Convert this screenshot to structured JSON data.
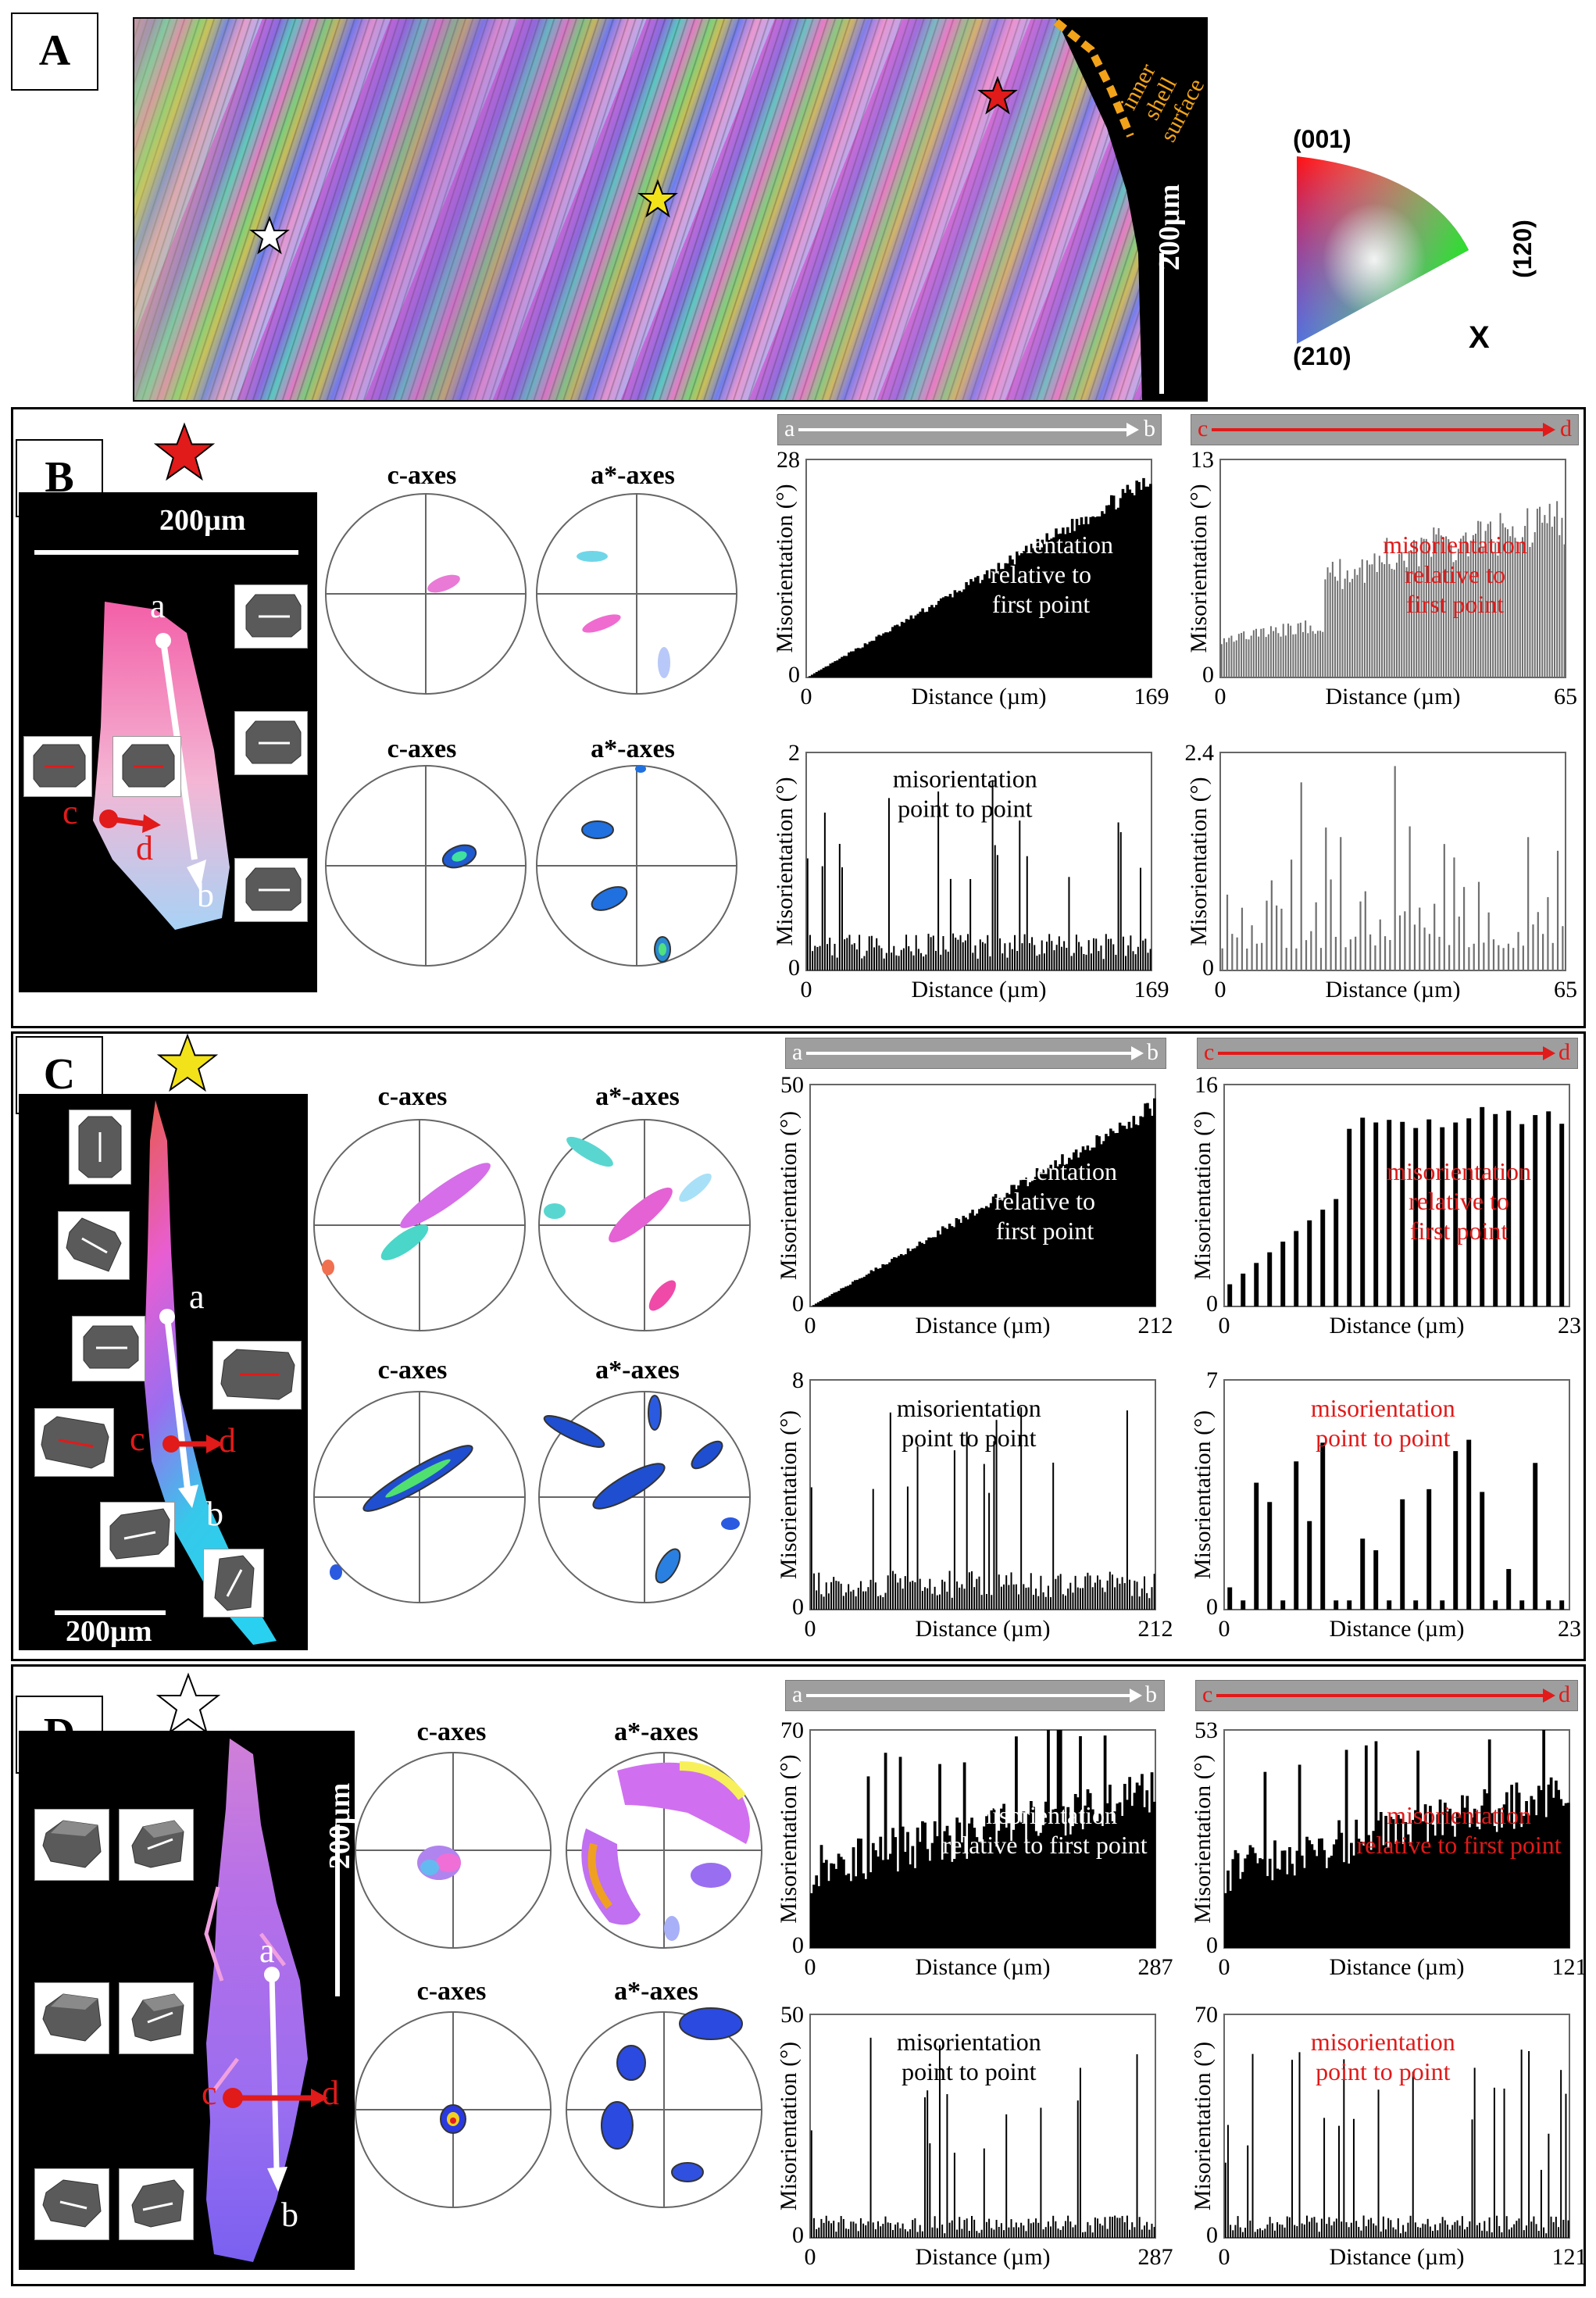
{
  "panels": {
    "A": {
      "letter": "A",
      "map_labels": {
        "inner_shell_surface": [
          "inner",
          "shell",
          "surface"
        ],
        "scale_bar": "200µm"
      },
      "ipf_key": {
        "top": "(001)",
        "right": "(120)",
        "bottom_left": "(210)",
        "axis": "X"
      }
    },
    "B": {
      "letter": "B",
      "star_color": "#e11a1a",
      "scale_bar": "200µm",
      "points": {
        "a": "a",
        "b": "b",
        "c": "c",
        "d": "d"
      },
      "pole_figures": {
        "c_axes": "c-axes",
        "a_axes": "a*-axes"
      },
      "header_ab": {
        "start": "a",
        "end": "b"
      },
      "header_cd": {
        "start": "c",
        "end": "d"
      }
    },
    "C": {
      "letter": "C",
      "star_color": "#f2e21a",
      "scale_bar": "200µm",
      "points": {
        "a": "a",
        "b": "b",
        "c": "c",
        "d": "d"
      },
      "pole_figures": {
        "c_axes": "c-axes",
        "a_axes": "a*-axes"
      },
      "header_ab": {
        "start": "a",
        "end": "b"
      },
      "header_cd": {
        "start": "c",
        "end": "d"
      }
    },
    "D": {
      "letter": "D",
      "star_color": "#ffffff",
      "scale_bar": "200µm",
      "points": {
        "a": "a",
        "b": "b",
        "c": "c",
        "d": "d"
      },
      "pole_figures": {
        "c_axes": "c-axes",
        "a_axes": "a*-axes"
      },
      "header_ab": {
        "start": "a",
        "end": "b"
      },
      "header_cd": {
        "start": "c",
        "end": "d"
      }
    }
  },
  "chart_data": [
    {
      "id": "B_ab_rel",
      "type": "bar",
      "profile": "cumulative",
      "ylabel": "Misorientation (°)",
      "xlabel": "Distance (µm)",
      "ylim": [
        0,
        28
      ],
      "xlim": [
        0,
        169
      ],
      "ytick_top": "28",
      "xtick_end": "169",
      "annotation": [
        "misorientation",
        "relative to",
        "first point"
      ],
      "annotation_color": "#000000",
      "bar_color": "#000000"
    },
    {
      "id": "B_cd_rel",
      "type": "bar",
      "profile": "cd_rel",
      "ylabel": "Misorientation (°)",
      "xlabel": "Distance (µm)",
      "ylim": [
        0,
        13
      ],
      "xlim": [
        0,
        65
      ],
      "ytick_top": "13",
      "xtick_end": "65",
      "annotation": [
        "misorientation",
        "relative to",
        "first point"
      ],
      "annotation_color": "#e11a1a",
      "bar_color": "#707070"
    },
    {
      "id": "B_ab_pt",
      "type": "bar",
      "profile": "spiky",
      "ylabel": "Misorientation (°)",
      "xlabel": "Distance (µm)",
      "ylim": [
        0,
        2
      ],
      "xlim": [
        0,
        169
      ],
      "ytick_top": "2",
      "xtick_end": "169",
      "annotation": [
        "misorientation",
        "point to point"
      ],
      "annotation_color": "#000000",
      "bar_color": "#000000"
    },
    {
      "id": "B_cd_pt",
      "type": "bar",
      "profile": "spiky_sparse",
      "ylabel": "Misorientation (°)",
      "xlabel": "Distance (µm)",
      "ylim": [
        0,
        2.4
      ],
      "xlim": [
        0,
        65
      ],
      "ytick_top": "2.4",
      "xtick_end": "65",
      "annotation": [],
      "annotation_color": "#e11a1a",
      "bar_color": "#707070"
    },
    {
      "id": "C_ab_rel",
      "type": "bar",
      "profile": "cumulative",
      "ylabel": "Misorientation (°)",
      "xlabel": "Distance (µm)",
      "ylim": [
        0,
        50
      ],
      "xlim": [
        0,
        212
      ],
      "ytick_top": "50",
      "xtick_end": "212",
      "annotation": [
        "misorientation",
        "relative to",
        "first point"
      ],
      "annotation_color": "#000000",
      "bar_color": "#000000"
    },
    {
      "id": "C_cd_rel",
      "type": "bar",
      "profile": "cd_rel_sparse",
      "ylabel": "Misorientation (°)",
      "xlabel": "Distance (µm)",
      "ylim": [
        0,
        16
      ],
      "xlim": [
        0,
        23
      ],
      "ytick_top": "16",
      "xtick_end": "23",
      "annotation": [
        "misorientation",
        "relative to",
        "first point"
      ],
      "annotation_color": "#e11a1a",
      "bar_color": "#000000"
    },
    {
      "id": "C_ab_pt",
      "type": "bar",
      "profile": "spiky",
      "ylabel": "Misorientation (°)",
      "xlabel": "Distance (µm)",
      "ylim": [
        0,
        8
      ],
      "xlim": [
        0,
        212
      ],
      "ytick_top": "8",
      "xtick_end": "212",
      "annotation": [
        "misorientation",
        "point to point"
      ],
      "annotation_color": "#000000",
      "bar_color": "#000000"
    },
    {
      "id": "C_cd_pt",
      "type": "bar",
      "profile": "spiky_very_sparse",
      "ylabel": "Misorientation (°)",
      "xlabel": "Distance (µm)",
      "ylim": [
        0,
        7
      ],
      "xlim": [
        0,
        23
      ],
      "ytick_top": "7",
      "xtick_end": "23",
      "annotation": [
        "misorientation",
        "point to point"
      ],
      "annotation_color": "#e11a1a",
      "bar_color": "#000000"
    },
    {
      "id": "D_ab_rel",
      "type": "bar",
      "profile": "noisy_block",
      "ylabel": "Misorientation (°)",
      "xlabel": "Distance (µm)",
      "ylim": [
        0,
        70
      ],
      "xlim": [
        0,
        287
      ],
      "ytick_top": "70",
      "xtick_end": "287",
      "annotation": [
        "misorientation",
        "relative to first point"
      ],
      "annotation_color": "#000000",
      "bar_color": "#000000"
    },
    {
      "id": "D_cd_rel",
      "type": "bar",
      "profile": "noisy_block",
      "ylabel": "Misorientation (°)",
      "xlabel": "Distance (µm)",
      "ylim": [
        0,
        53
      ],
      "xlim": [
        0,
        121
      ],
      "ytick_top": "53",
      "xtick_end": "121",
      "annotation": [
        "misorientation",
        "relative to first point"
      ],
      "annotation_color": "#e11a1a",
      "bar_color": "#000000"
    },
    {
      "id": "D_ab_pt",
      "type": "bar",
      "profile": "spiky_big",
      "ylabel": "Misorientation (°)",
      "xlabel": "Distance (µm)",
      "ylim": [
        0,
        50
      ],
      "xlim": [
        0,
        287
      ],
      "ytick_top": "50",
      "xtick_end": "287",
      "annotation": [
        "misorientation",
        "point to point"
      ],
      "annotation_color": "#000000",
      "bar_color": "#000000"
    },
    {
      "id": "D_cd_pt",
      "type": "bar",
      "profile": "spiky_big",
      "ylabel": "Misorientation (°)",
      "xlabel": "Distance (µm)",
      "ylim": [
        0,
        70
      ],
      "xlim": [
        0,
        121
      ],
      "ytick_top": "70",
      "xtick_end": "121",
      "annotation": [
        "misorientation",
        "point to point"
      ],
      "annotation_color": "#e11a1a",
      "bar_color": "#000000"
    }
  ]
}
